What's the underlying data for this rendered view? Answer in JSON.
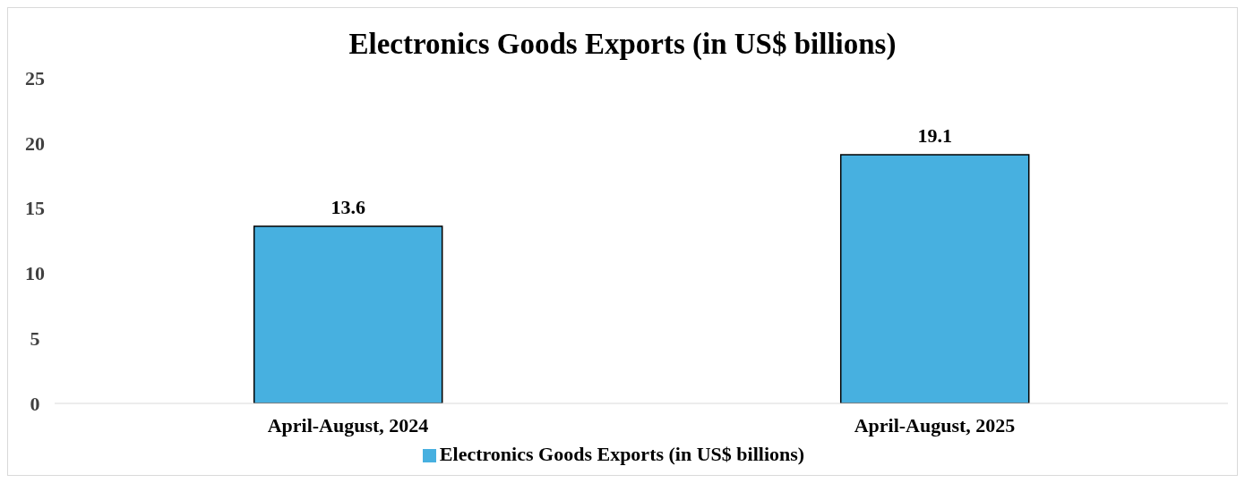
{
  "chart_data": {
    "type": "bar",
    "title": "Electronics Goods Exports (in US$ billions)",
    "categories": [
      "April-August, 2024",
      "April-August, 2025"
    ],
    "series": [
      {
        "name": "Electronics Goods Exports (in US$ billions)",
        "color": "#47b0e0",
        "values": [
          13.6,
          19.1
        ]
      }
    ],
    "ylim": [
      0,
      25
    ],
    "yticks": [
      0,
      5,
      10,
      15,
      20,
      25
    ],
    "data_labels": true,
    "legend": "bottom",
    "grid": false
  }
}
